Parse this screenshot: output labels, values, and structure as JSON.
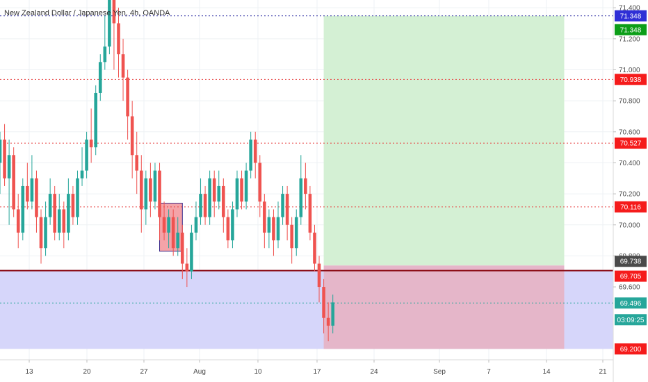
{
  "chart_data": {
    "type": "candlestick",
    "title": "New Zealand Dollar / Japanese Yen, 4h, OANDA",
    "ylim": [
      69.13,
      71.45
    ],
    "xlim": [
      0,
      53.8
    ],
    "y_ticks": [
      "71.400",
      "71.200",
      "71.000",
      "70.800",
      "70.600",
      "70.400",
      "70.200",
      "70.000",
      "69.800",
      "69.600"
    ],
    "y_tick_values": [
      71.4,
      71.2,
      71.0,
      70.8,
      70.6,
      70.4,
      70.2,
      70.0,
      69.8,
      69.6
    ],
    "x_ticks": [
      {
        "label": "13",
        "day": 2.5
      },
      {
        "label": "20",
        "day": 7.6
      },
      {
        "label": "27",
        "day": 12.6
      },
      {
        "label": "Aug",
        "day": 17.4
      },
      {
        "label": "10",
        "day": 22.6
      },
      {
        "label": "17",
        "day": 27.7
      },
      {
        "label": "24",
        "day": 32.8
      },
      {
        "label": "Sep",
        "day": 38.6
      },
      {
        "label": "7",
        "day": 43.0
      },
      {
        "label": "14",
        "day": 48.2
      },
      {
        "label": "21",
        "day": 53.2
      }
    ],
    "x_tick_positions": [
      42,
      125,
      207,
      287,
      371,
      456,
      538,
      632,
      703,
      786,
      867
    ],
    "candles": [
      [
        0.0,
        70.4,
        70.55,
        70.6,
        70.2
      ],
      [
        0.4,
        70.55,
        70.3,
        70.65,
        70.25
      ],
      [
        0.8,
        70.3,
        70.45,
        70.55,
        70.0
      ],
      [
        1.2,
        70.45,
        70.1,
        70.5,
        70.05
      ],
      [
        1.6,
        70.1,
        69.95,
        70.2,
        69.85
      ],
      [
        2.0,
        69.95,
        70.25,
        70.3,
        69.9
      ],
      [
        2.4,
        70.25,
        70.15,
        70.4,
        70.1
      ],
      [
        2.8,
        70.15,
        70.3,
        70.45,
        70.1
      ],
      [
        3.2,
        70.3,
        70.05,
        70.35,
        69.95
      ],
      [
        3.6,
        70.05,
        69.85,
        70.1,
        69.75
      ],
      [
        4.0,
        69.85,
        70.05,
        70.15,
        69.8
      ],
      [
        4.4,
        70.05,
        70.2,
        70.3,
        70.0
      ],
      [
        4.8,
        70.2,
        69.95,
        70.25,
        69.9
      ],
      [
        5.2,
        69.95,
        70.1,
        70.2,
        69.9
      ],
      [
        5.6,
        70.1,
        69.95,
        70.15,
        69.85
      ],
      [
        6.0,
        69.95,
        70.2,
        70.3,
        69.9
      ],
      [
        6.4,
        70.2,
        70.05,
        70.25,
        70.0
      ],
      [
        6.8,
        70.05,
        70.3,
        70.35,
        70.0
      ],
      [
        7.2,
        70.3,
        70.35,
        70.5,
        70.25
      ],
      [
        7.6,
        70.35,
        70.55,
        70.6,
        70.3
      ],
      [
        8.0,
        70.55,
        70.5,
        70.75,
        70.4
      ],
      [
        8.4,
        70.5,
        70.85,
        70.9,
        70.45
      ],
      [
        8.8,
        70.85,
        71.05,
        71.1,
        70.8
      ],
      [
        9.2,
        71.05,
        71.15,
        71.35,
        71.0
      ],
      [
        9.6,
        71.15,
        71.45,
        71.45,
        71.1
      ],
      [
        10.0,
        71.45,
        71.3,
        71.45,
        71.0
      ],
      [
        10.4,
        71.3,
        71.1,
        71.4,
        70.95
      ],
      [
        10.8,
        71.1,
        70.95,
        71.2,
        70.8
      ],
      [
        11.2,
        70.95,
        70.7,
        71.0,
        70.55
      ],
      [
        11.6,
        70.7,
        70.45,
        70.8,
        70.3
      ],
      [
        12.0,
        70.45,
        70.35,
        70.6,
        70.2
      ],
      [
        12.4,
        70.35,
        70.1,
        70.45,
        69.95
      ],
      [
        12.8,
        70.1,
        70.3,
        70.35,
        70.0
      ],
      [
        13.2,
        70.3,
        70.15,
        70.4,
        70.05
      ],
      [
        13.6,
        70.15,
        70.35,
        70.4,
        70.1
      ],
      [
        14.0,
        70.35,
        70.05,
        70.4,
        69.9
      ],
      [
        14.4,
        70.05,
        69.95,
        70.15,
        69.9
      ],
      [
        14.8,
        69.95,
        70.05,
        70.1,
        69.85
      ],
      [
        15.2,
        70.05,
        69.85,
        70.1,
        69.8
      ],
      [
        15.6,
        69.85,
        69.95,
        70.05,
        69.8
      ],
      [
        16.0,
        69.95,
        69.75,
        70.0,
        69.65
      ],
      [
        16.4,
        69.75,
        69.7,
        69.85,
        69.6
      ],
      [
        16.8,
        69.7,
        69.95,
        70.0,
        69.65
      ],
      [
        17.2,
        69.95,
        70.05,
        70.15,
        69.9
      ],
      [
        17.6,
        70.05,
        70.2,
        70.3,
        70.0
      ],
      [
        18.0,
        70.2,
        70.05,
        70.25,
        70.0
      ],
      [
        18.4,
        70.05,
        70.3,
        70.35,
        70.0
      ],
      [
        18.8,
        70.3,
        70.15,
        70.35,
        70.05
      ],
      [
        19.2,
        70.15,
        70.25,
        70.35,
        70.1
      ],
      [
        19.6,
        70.25,
        70.05,
        70.3,
        69.95
      ],
      [
        20.0,
        70.05,
        69.9,
        70.1,
        69.85
      ],
      [
        20.4,
        69.9,
        70.1,
        70.15,
        69.85
      ],
      [
        20.8,
        70.1,
        70.3,
        70.35,
        70.05
      ],
      [
        21.2,
        70.3,
        70.15,
        70.35,
        70.1
      ],
      [
        21.6,
        70.15,
        70.35,
        70.4,
        70.1
      ],
      [
        22.0,
        70.35,
        70.55,
        70.6,
        70.3
      ],
      [
        22.4,
        70.55,
        70.4,
        70.6,
        70.3
      ],
      [
        22.8,
        70.4,
        70.15,
        70.45,
        70.05
      ],
      [
        23.2,
        70.15,
        69.95,
        70.2,
        69.85
      ],
      [
        23.6,
        69.95,
        70.05,
        70.1,
        69.85
      ],
      [
        24.0,
        70.05,
        69.9,
        70.1,
        69.8
      ],
      [
        24.4,
        69.9,
        70.05,
        70.15,
        69.85
      ],
      [
        24.8,
        70.05,
        70.2,
        70.25,
        70.0
      ],
      [
        25.2,
        70.2,
        70.0,
        70.25,
        69.9
      ],
      [
        25.6,
        70.0,
        69.85,
        70.05,
        69.75
      ],
      [
        26.0,
        69.85,
        70.05,
        70.1,
        69.8
      ],
      [
        26.4,
        70.05,
        70.3,
        70.45,
        70.0
      ],
      [
        26.8,
        70.3,
        70.2,
        70.4,
        70.1
      ],
      [
        27.2,
        70.2,
        69.95,
        70.25,
        69.9
      ],
      [
        27.6,
        69.95,
        69.75,
        70.0,
        69.7
      ],
      [
        28.0,
        69.75,
        69.6,
        69.8,
        69.5
      ],
      [
        28.4,
        69.6,
        69.4,
        69.65,
        69.3
      ],
      [
        28.8,
        69.4,
        69.35,
        69.5,
        69.25
      ],
      [
        29.2,
        69.35,
        69.5,
        69.55,
        69.3
      ]
    ],
    "boxes": [
      {
        "name": "Sell zone",
        "x0": 14.0,
        "x1": 16.0,
        "y0": 69.83,
        "y1": 70.14,
        "fill": "#f4a3a8",
        "stroke": "#3d2b8a"
      },
      {
        "name": "Support zone",
        "x0": 0.0,
        "x1": 53.8,
        "y0": 69.2,
        "y1": 69.71,
        "fill": "#d6d6fa",
        "stroke": "none"
      },
      {
        "name": "Target zone",
        "x0": 28.4,
        "x1": 49.5,
        "y0": 69.738,
        "y1": 71.348,
        "fill": "#d4f0d4",
        "stroke": "none"
      },
      {
        "name": "Stop zone",
        "x0": 28.4,
        "x1": 49.5,
        "y0": 69.2,
        "y1": 69.738,
        "fill": "#e5b6c9",
        "stroke": "none"
      }
    ],
    "h_lines": [
      {
        "value": 71.348,
        "color": "#3a3aa8",
        "style": "dotted"
      },
      {
        "value": 70.938,
        "color": "#e84545",
        "style": "dotted"
      },
      {
        "value": 70.527,
        "color": "#e84545",
        "style": "dotted"
      },
      {
        "value": 70.116,
        "color": "#e84545",
        "style": "dotted"
      },
      {
        "value": 69.705,
        "color": "#8b0b14",
        "style": "solid"
      },
      {
        "value": 69.496,
        "color": "#26a69a",
        "style": "dotted"
      }
    ],
    "price_tags": [
      {
        "label": "71.348",
        "value": 71.348,
        "color": "#2f2fd6",
        "offset": 0
      },
      {
        "label": "71.348",
        "value": 71.348,
        "color": "#0c9e18",
        "offset": 20
      },
      {
        "label": "70.938",
        "value": 70.938,
        "color": "#f51b1b",
        "offset": 0
      },
      {
        "label": "70.527",
        "value": 70.527,
        "color": "#f51b1b",
        "offset": 0
      },
      {
        "label": "70.116",
        "value": 70.116,
        "color": "#f51b1b",
        "offset": 0
      },
      {
        "label": "69.738",
        "value": 69.738,
        "color": "#4a4a4a",
        "offset": -6
      },
      {
        "label": "69.705",
        "value": 69.705,
        "color": "#f51b1b",
        "offset": 8
      },
      {
        "label": "69.496",
        "value": 69.496,
        "color": "#26a69a",
        "offset": 0
      },
      {
        "label": "03:09:25",
        "value": 69.496,
        "color": "#26a69a",
        "offset": 24
      },
      {
        "label": "69.200",
        "value": 69.2,
        "color": "#f51b1b",
        "offset": 0
      }
    ],
    "colors": {
      "up": "#26a69a",
      "down": "#ef5350",
      "grid": "#eef1f4",
      "axis": "#d9d9d9"
    }
  }
}
